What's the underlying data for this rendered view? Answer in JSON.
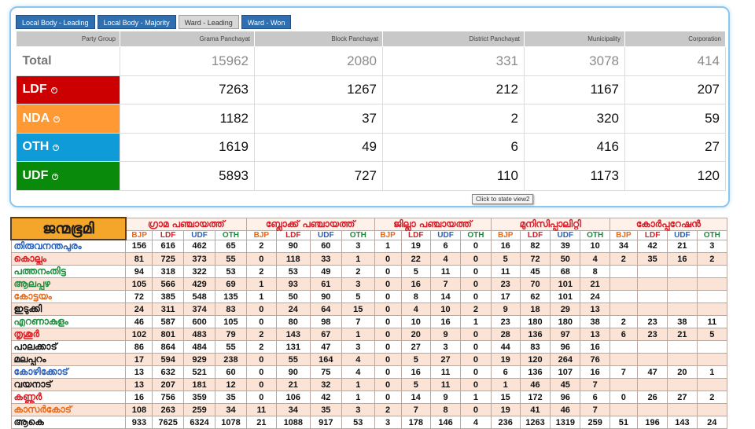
{
  "tabs": [
    "Local Body - Leading",
    "Local Body - Majority",
    "Ward - Leading",
    "Ward - Won"
  ],
  "active_tab": 2,
  "summary": {
    "headers": [
      "Party Group",
      "Grama Panchayat",
      "Block Panchayat",
      "District Panchayat",
      "Municipality",
      "Corporation"
    ],
    "rows": [
      {
        "label": "Total",
        "color": "#ffffff",
        "values": [
          "15962",
          "2080",
          "331",
          "3078",
          "414"
        ]
      },
      {
        "label": "LDF",
        "color": "#cc0000",
        "values": [
          "7263",
          "1267",
          "212",
          "1167",
          "207"
        ]
      },
      {
        "label": "NDA",
        "color": "#ff9933",
        "values": [
          "1182",
          "37",
          "2",
          "320",
          "59"
        ]
      },
      {
        "label": "OTH",
        "color": "#0f9bd7",
        "values": [
          "1619",
          "49",
          "6",
          "416",
          "27"
        ]
      },
      {
        "label": "UDF",
        "color": "#0a8a0a",
        "values": [
          "5893",
          "727",
          "110",
          "1173",
          "120"
        ]
      }
    ]
  },
  "tooltip": "Click to state view2",
  "district_table": {
    "logo": "ജന്മഭൂമി",
    "groups": [
      "ഗ്രാമ പഞ്ചായത്ത്",
      "ബ്ലോക്ക് പഞ്ചായത്ത്",
      "ജില്ലാ പഞ്ചായത്ത്",
      "മുനിസിപ്പാലിറ്റി",
      "കോർപ്പറേഷൻ"
    ],
    "parties": [
      "BJP",
      "LDF",
      "UDF",
      "OTH"
    ],
    "rows": [
      {
        "name": "തിരുവനന്തപുരം",
        "color": "#2a5fb8",
        "values": [
          "156",
          "616",
          "462",
          "65",
          "2",
          "90",
          "60",
          "3",
          "1",
          "19",
          "6",
          "0",
          "16",
          "82",
          "39",
          "10",
          "34",
          "42",
          "21",
          "3"
        ]
      },
      {
        "name": "കൊല്ലം",
        "color": "#d41e24",
        "values": [
          "81",
          "725",
          "373",
          "55",
          "0",
          "118",
          "33",
          "1",
          "0",
          "22",
          "4",
          "0",
          "5",
          "72",
          "50",
          "4",
          "2",
          "35",
          "16",
          "2"
        ]
      },
      {
        "name": "പത്തനംതിട്ട",
        "color": "#1e8a3c",
        "values": [
          "94",
          "318",
          "322",
          "53",
          "2",
          "53",
          "49",
          "2",
          "0",
          "5",
          "11",
          "0",
          "11",
          "45",
          "68",
          "8",
          "",
          "",
          "",
          ""
        ]
      },
      {
        "name": "ആലപ്പുഴ",
        "color": "#1e8a3c",
        "values": [
          "105",
          "566",
          "429",
          "69",
          "1",
          "93",
          "61",
          "3",
          "0",
          "16",
          "7",
          "0",
          "23",
          "70",
          "101",
          "21",
          "",
          "",
          "",
          ""
        ]
      },
      {
        "name": "കോട്ടയം",
        "color": "#e46a1c",
        "values": [
          "72",
          "385",
          "548",
          "135",
          "1",
          "50",
          "90",
          "5",
          "0",
          "8",
          "14",
          "0",
          "17",
          "62",
          "101",
          "24",
          "",
          "",
          "",
          ""
        ]
      },
      {
        "name": "ഇടുക്കി",
        "color": "#111111",
        "values": [
          "24",
          "311",
          "374",
          "83",
          "0",
          "24",
          "64",
          "15",
          "0",
          "4",
          "10",
          "2",
          "9",
          "18",
          "29",
          "13",
          "",
          "",
          "",
          ""
        ]
      },
      {
        "name": "എറണാകുളം",
        "color": "#1e8a3c",
        "values": [
          "46",
          "587",
          "600",
          "105",
          "0",
          "80",
          "98",
          "7",
          "0",
          "10",
          "16",
          "1",
          "23",
          "180",
          "180",
          "38",
          "2",
          "23",
          "38",
          "11"
        ]
      },
      {
        "name": "തൃശൂർ",
        "color": "#d41e24",
        "values": [
          "102",
          "801",
          "483",
          "79",
          "2",
          "143",
          "67",
          "1",
          "0",
          "20",
          "9",
          "0",
          "28",
          "136",
          "97",
          "13",
          "6",
          "23",
          "21",
          "5"
        ]
      },
      {
        "name": "പാലക്കാട്",
        "color": "#111111",
        "values": [
          "86",
          "864",
          "484",
          "55",
          "2",
          "131",
          "47",
          "3",
          "0",
          "27",
          "3",
          "0",
          "44",
          "83",
          "96",
          "16",
          "",
          "",
          "",
          ""
        ]
      },
      {
        "name": "മലപ്പുറം",
        "color": "#111111",
        "values": [
          "17",
          "594",
          "929",
          "238",
          "0",
          "55",
          "164",
          "4",
          "0",
          "5",
          "27",
          "0",
          "19",
          "120",
          "264",
          "76",
          "",
          "",
          "",
          ""
        ]
      },
      {
        "name": "കോഴിക്കോട്",
        "color": "#2a5fb8",
        "values": [
          "13",
          "632",
          "521",
          "60",
          "0",
          "90",
          "75",
          "4",
          "0",
          "16",
          "11",
          "0",
          "6",
          "136",
          "107",
          "16",
          "7",
          "47",
          "20",
          "1"
        ]
      },
      {
        "name": "വയനാട്",
        "color": "#111111",
        "values": [
          "13",
          "207",
          "181",
          "12",
          "0",
          "21",
          "32",
          "1",
          "0",
          "5",
          "11",
          "0",
          "1",
          "46",
          "45",
          "7",
          "",
          "",
          "",
          ""
        ]
      },
      {
        "name": "കണ്ണൂർ",
        "color": "#d41e24",
        "values": [
          "16",
          "756",
          "359",
          "35",
          "0",
          "106",
          "42",
          "1",
          "0",
          "14",
          "9",
          "1",
          "15",
          "172",
          "96",
          "6",
          "0",
          "26",
          "27",
          "2"
        ]
      },
      {
        "name": "കാസർകോട്",
        "color": "#e46a1c",
        "values": [
          "108",
          "263",
          "259",
          "34",
          "11",
          "34",
          "35",
          "3",
          "2",
          "7",
          "8",
          "0",
          "19",
          "41",
          "46",
          "7",
          "",
          "",
          "",
          ""
        ]
      }
    ],
    "total": {
      "name": "ആകെ",
      "color": "#111111",
      "values": [
        "933",
        "7625",
        "6324",
        "1078",
        "21",
        "1088",
        "917",
        "53",
        "3",
        "178",
        "146",
        "4",
        "236",
        "1263",
        "1319",
        "259",
        "51",
        "196",
        "143",
        "24"
      ]
    }
  }
}
